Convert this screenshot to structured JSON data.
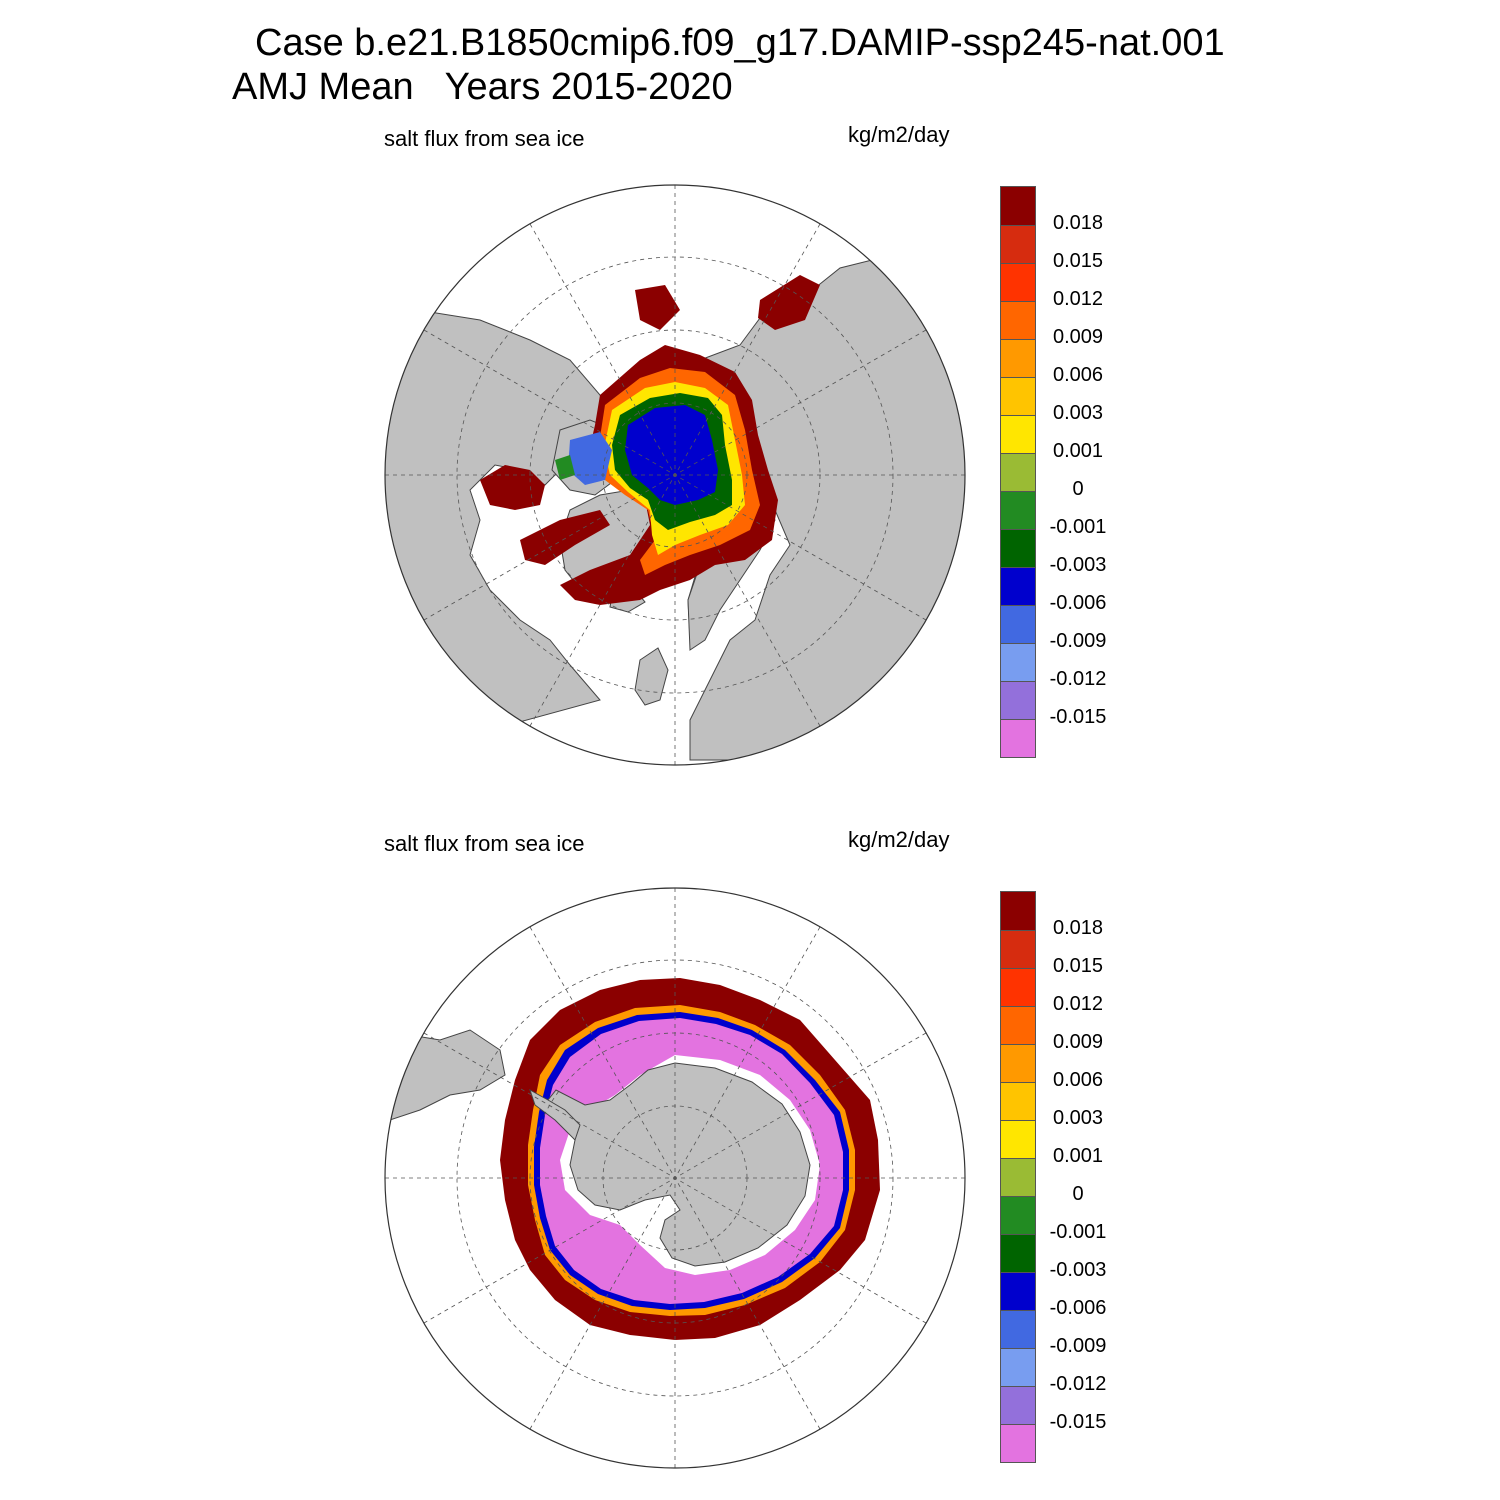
{
  "figure": {
    "title_line_1": "Case b.e21.B1850cmip6.f09_g17.DAMIP-ssp245-nat.001",
    "title_line_2": "AMJ Mean   Years 2015-2020"
  },
  "panels": [
    {
      "id": "north",
      "hemisphere": "Northern Hemisphere (polar stereographic)",
      "left_label": "salt flux from sea ice",
      "right_label": "kg/m2/day"
    },
    {
      "id": "south",
      "hemisphere": "Southern Hemisphere (polar stereographic)",
      "left_label": "salt flux from sea ice",
      "right_label": "kg/m2/day"
    }
  ],
  "colorbar": {
    "tick_labels": [
      "0.018",
      "0.015",
      "0.012",
      "0.009",
      "0.006",
      "0.003",
      "0.001",
      "0",
      "-0.001",
      "-0.003",
      "-0.006",
      "-0.009",
      "-0.012",
      "-0.015"
    ],
    "colors": [
      "#8b0000",
      "#d62c0f",
      "#ff3300",
      "#ff6600",
      "#ff9900",
      "#ffc400",
      "#ffe600",
      "#9abb34",
      "#228b22",
      "#006400",
      "#0000cd",
      "#4169e1",
      "#789df0",
      "#9370db",
      "#e373e0"
    ]
  },
  "colors": {
    "land": "#c0c0c0",
    "coast": "#444444",
    "ocean_no_ice": "#ffffff",
    "grid": "#555555"
  }
}
